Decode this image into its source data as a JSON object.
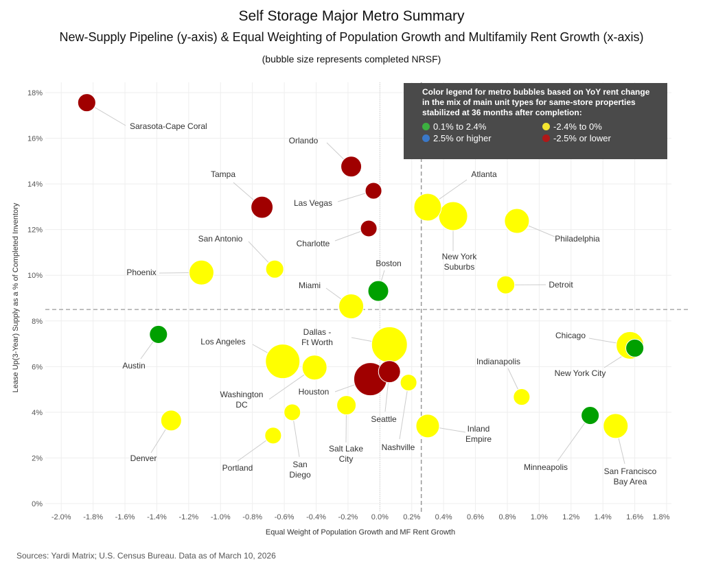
{
  "header": {
    "title": "Self Storage Major Metro Summary",
    "subtitle": "New-Supply Pipeline (y-axis) & Equal Weighting of Population Growth and Multifamily Rent Growth (x-axis)",
    "note": "(bubble size represents completed NRSF)"
  },
  "legend": {
    "title": "Color legend for metro bubbles based on YoY rent change in the mix of main unit types for same-store properties stabilized at 36 months after completion:",
    "items": [
      {
        "label": "0.1% to 2.4%",
        "color": "#00a000"
      },
      {
        "label": "-2.4% to 0%",
        "color": "#ffff00"
      },
      {
        "label": "2.5% or higher",
        "color": "#3a78c8"
      },
      {
        "label": "-2.5% or lower",
        "color": "#a00000"
      }
    ]
  },
  "footer": {
    "sources": "Sources: Yardi Matrix; U.S. Census Bureau. Data as of March 10, 2026"
  },
  "chart_data": {
    "type": "scatter",
    "subtype": "bubble",
    "xlabel": "Equal Weight of Population Growth and MF Rent Growth",
    "ylabel": "Lease Up(3-Year) Supply as a % of Completed Inventory",
    "xlim": [
      -2.1,
      1.83
    ],
    "ylim": [
      -0.36,
      18.45
    ],
    "x_ticks": [
      "-2.0%",
      "-1.8%",
      "-1.6%",
      "-1.4%",
      "-1.2%",
      "-1.0%",
      "-0.8%",
      "-0.6%",
      "-0.4%",
      "-0.2%",
      "0.0%",
      "0.2%",
      "0.4%",
      "0.6%",
      "0.8%",
      "1.0%",
      "1.2%",
      "1.4%",
      "1.6%",
      "1.8%"
    ],
    "y_ticks": [
      "0%",
      "2%",
      "4%",
      "6%",
      "8%",
      "10%",
      "12%",
      "14%",
      "16%",
      "18%"
    ],
    "grid": true,
    "reference_lines": {
      "x": 0.26,
      "y": 8.5
    },
    "colors": {
      "green": "#00a000",
      "yellow": "#ffff00",
      "red": "#a00000"
    },
    "points": [
      {
        "name": "Sarasota-Cape Coral",
        "x": -1.84,
        "y": 17.56,
        "size": 1.7,
        "color": "red"
      },
      {
        "name": "Orlando",
        "x": -0.18,
        "y": 14.76,
        "size": 2.25,
        "color": "red"
      },
      {
        "name": "Las Vegas",
        "x": -0.04,
        "y": 13.7,
        "size": 1.45,
        "color": "red"
      },
      {
        "name": "Tampa",
        "x": -0.74,
        "y": 12.98,
        "size": 2.55,
        "color": "red"
      },
      {
        "name": "Charlotte",
        "x": -0.07,
        "y": 12.05,
        "size": 1.45,
        "color": "red"
      },
      {
        "name": "Atlanta",
        "x": 0.3,
        "y": 12.98,
        "size": 4.0,
        "color": "yellow"
      },
      {
        "name": "New York\nSuburbs",
        "x": 0.46,
        "y": 12.59,
        "size": 4.4,
        "color": "yellow"
      },
      {
        "name": "Philadelphia",
        "x": 0.86,
        "y": 12.38,
        "size": 3.25,
        "color": "yellow"
      },
      {
        "name": "San Antonio",
        "x": -0.66,
        "y": 10.27,
        "size": 1.7,
        "color": "yellow"
      },
      {
        "name": "Phoenix",
        "x": -1.12,
        "y": 10.12,
        "size": 3.25,
        "color": "yellow"
      },
      {
        "name": "Boston",
        "x": -0.01,
        "y": 9.31,
        "size": 2.25,
        "color": "green"
      },
      {
        "name": "Miami",
        "x": -0.18,
        "y": 8.64,
        "size": 3.25,
        "color": "yellow"
      },
      {
        "name": "Detroit",
        "x": 0.79,
        "y": 9.58,
        "size": 1.7,
        "color": "yellow"
      },
      {
        "name": "Austin",
        "x": -1.39,
        "y": 7.41,
        "size": 1.7,
        "color": "green"
      },
      {
        "name": "Dallas -\nFt Worth",
        "x": 0.06,
        "y": 6.96,
        "size": 6.75,
        "color": "yellow"
      },
      {
        "name": "Chicago",
        "x": 1.57,
        "y": 6.93,
        "size": 4.0,
        "color": "yellow"
      },
      {
        "name": "New York City",
        "x": 1.6,
        "y": 6.81,
        "size": 1.7,
        "color": "green"
      },
      {
        "name": "Los Angeles",
        "x": -0.61,
        "y": 6.23,
        "size": 6.25,
        "color": "yellow"
      },
      {
        "name": "Washington\nDC",
        "x": -0.41,
        "y": 5.96,
        "size": 3.25,
        "color": "yellow"
      },
      {
        "name": "Houston",
        "x": -0.06,
        "y": 5.45,
        "size": 5.75,
        "color": "red"
      },
      {
        "name": "Seattle",
        "x": 0.06,
        "y": 5.78,
        "size": 2.55,
        "color": "red"
      },
      {
        "name": "Nashville",
        "x": 0.18,
        "y": 5.3,
        "size": 1.45,
        "color": "yellow"
      },
      {
        "name": "Indianapolis",
        "x": 0.89,
        "y": 4.67,
        "size": 1.45,
        "color": "yellow"
      },
      {
        "name": "Salt Lake\nCity",
        "x": -0.21,
        "y": 4.31,
        "size": 1.95,
        "color": "yellow"
      },
      {
        "name": "San\nDiego",
        "x": -0.55,
        "y": 4.0,
        "size": 1.45,
        "color": "yellow"
      },
      {
        "name": "Denver",
        "x": -1.31,
        "y": 3.64,
        "size": 2.25,
        "color": "yellow"
      },
      {
        "name": "Portland",
        "x": -0.67,
        "y": 2.98,
        "size": 1.45,
        "color": "yellow"
      },
      {
        "name": "Inland\nEmpire",
        "x": 0.3,
        "y": 3.4,
        "size": 2.9,
        "color": "yellow"
      },
      {
        "name": "Minneapolis",
        "x": 1.32,
        "y": 3.86,
        "size": 1.7,
        "color": "green"
      },
      {
        "name": "San Francisco\nBay Area",
        "x": 1.48,
        "y": 3.4,
        "size": 3.25,
        "color": "yellow"
      }
    ]
  }
}
